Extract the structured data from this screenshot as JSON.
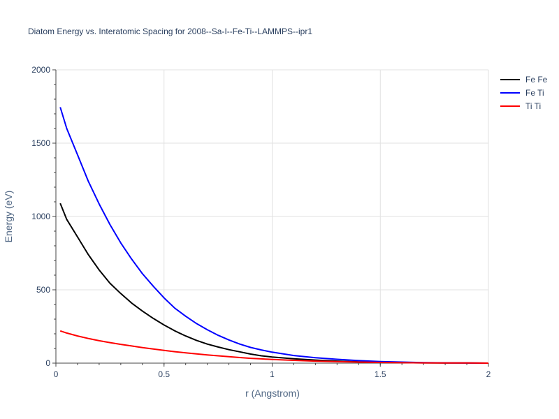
{
  "chart_data": {
    "type": "line",
    "title": "Diatom Energy vs. Interatomic Spacing for 2008--Sa-I--Fe-Ti--LAMMPS--ipr1",
    "xlabel": "r (Angstrom)",
    "ylabel": "Energy (eV)",
    "xlim": [
      0,
      2
    ],
    "ylim": [
      0,
      2000
    ],
    "x_ticks": [
      "0",
      "0.5",
      "1",
      "1.5",
      "2"
    ],
    "y_ticks": [
      "0",
      "500",
      "1000",
      "1500",
      "2000"
    ],
    "x_tick_values": [
      0,
      0.5,
      1,
      1.5,
      2
    ],
    "y_tick_values": [
      0,
      500,
      1000,
      1500,
      2000
    ],
    "grid": true,
    "legend_position": "top-right",
    "series": [
      {
        "name": "Fe Fe",
        "color": "#000000",
        "x": [
          0.02,
          0.05,
          0.1,
          0.15,
          0.2,
          0.25,
          0.3,
          0.35,
          0.4,
          0.45,
          0.5,
          0.55,
          0.6,
          0.65,
          0.7,
          0.75,
          0.8,
          0.85,
          0.9,
          0.95,
          1.0,
          1.1,
          1.2,
          1.3,
          1.4,
          1.5,
          1.6,
          1.7,
          1.8,
          1.9,
          2.0
        ],
        "y": [
          1090,
          980,
          860,
          740,
          635,
          545,
          475,
          410,
          355,
          305,
          260,
          220,
          185,
          155,
          130,
          110,
          92,
          77,
          62,
          50,
          42,
          30,
          21,
          14,
          9,
          5,
          3,
          2,
          1,
          1,
          0
        ]
      },
      {
        "name": "Fe Ti",
        "color": "#0000ff",
        "x": [
          0.02,
          0.05,
          0.1,
          0.15,
          0.2,
          0.25,
          0.3,
          0.35,
          0.4,
          0.45,
          0.5,
          0.55,
          0.6,
          0.65,
          0.7,
          0.75,
          0.8,
          0.85,
          0.9,
          0.95,
          1.0,
          1.1,
          1.2,
          1.3,
          1.4,
          1.5,
          1.6,
          1.7,
          1.8,
          1.9,
          2.0
        ],
        "y": [
          1745,
          1600,
          1420,
          1240,
          1085,
          945,
          820,
          710,
          610,
          525,
          445,
          375,
          320,
          270,
          228,
          190,
          158,
          130,
          107,
          90,
          75,
          52,
          37,
          26,
          17,
          11,
          7,
          4,
          2,
          1,
          0
        ]
      },
      {
        "name": "Ti Ti",
        "color": "#ff0000",
        "x": [
          0.02,
          0.05,
          0.1,
          0.15,
          0.2,
          0.25,
          0.3,
          0.35,
          0.4,
          0.45,
          0.5,
          0.55,
          0.6,
          0.65,
          0.7,
          0.75,
          0.8,
          0.85,
          0.9,
          0.95,
          1.0,
          1.1,
          1.2,
          1.3,
          1.4,
          1.5,
          1.6,
          1.7,
          1.8,
          1.9,
          2.0
        ],
        "y": [
          220,
          205,
          185,
          168,
          153,
          140,
          128,
          117,
          106,
          96,
          87,
          78,
          70,
          63,
          56,
          50,
          44,
          38,
          33,
          29,
          25,
          19,
          14,
          10,
          7,
          5,
          3,
          2,
          1,
          1,
          0
        ]
      }
    ]
  }
}
